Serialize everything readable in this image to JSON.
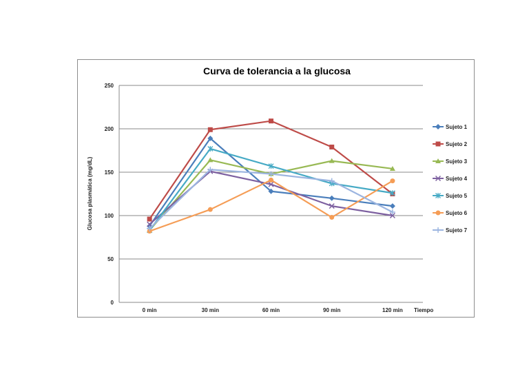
{
  "chart_data": {
    "type": "line",
    "title": "Curva de tolerancia a la glucosa",
    "xlabel": "Tiempo",
    "ylabel": "Glucosa plasmática (mg/dL)",
    "categories": [
      "0 min",
      "30 min",
      "60 min",
      "90 min",
      "120 min"
    ],
    "ylim": [
      0,
      250
    ],
    "yticks": [
      "0",
      "50",
      "100",
      "150",
      "200",
      "250"
    ],
    "grid": true,
    "legend_position": "right",
    "series": [
      {
        "name": "Sujeto 1",
        "color": "#4a7ebb",
        "marker": "diamond",
        "values": [
          88,
          189,
          128,
          120,
          111
        ]
      },
      {
        "name": "Sujeto 2",
        "color": "#be4b48",
        "marker": "square",
        "values": [
          96,
          199,
          209,
          179,
          125
        ]
      },
      {
        "name": "Sujeto 3",
        "color": "#98b954",
        "marker": "triangle",
        "values": [
          83,
          164,
          148,
          163,
          154
        ]
      },
      {
        "name": "Sujeto 4",
        "color": "#7d60a0",
        "marker": "x",
        "values": [
          90,
          151,
          136,
          111,
          100
        ]
      },
      {
        "name": "Sujeto 5",
        "color": "#46aac5",
        "marker": "asterisk",
        "values": [
          83,
          177,
          157,
          137,
          126
        ]
      },
      {
        "name": "Sujeto 6",
        "color": "#f59d56",
        "marker": "circle",
        "values": [
          82,
          107,
          141,
          98,
          140
        ]
      },
      {
        "name": "Sujeto 7",
        "color": "#9cb5e0",
        "marker": "plus",
        "values": [
          85,
          153,
          148,
          140,
          104
        ]
      }
    ]
  }
}
